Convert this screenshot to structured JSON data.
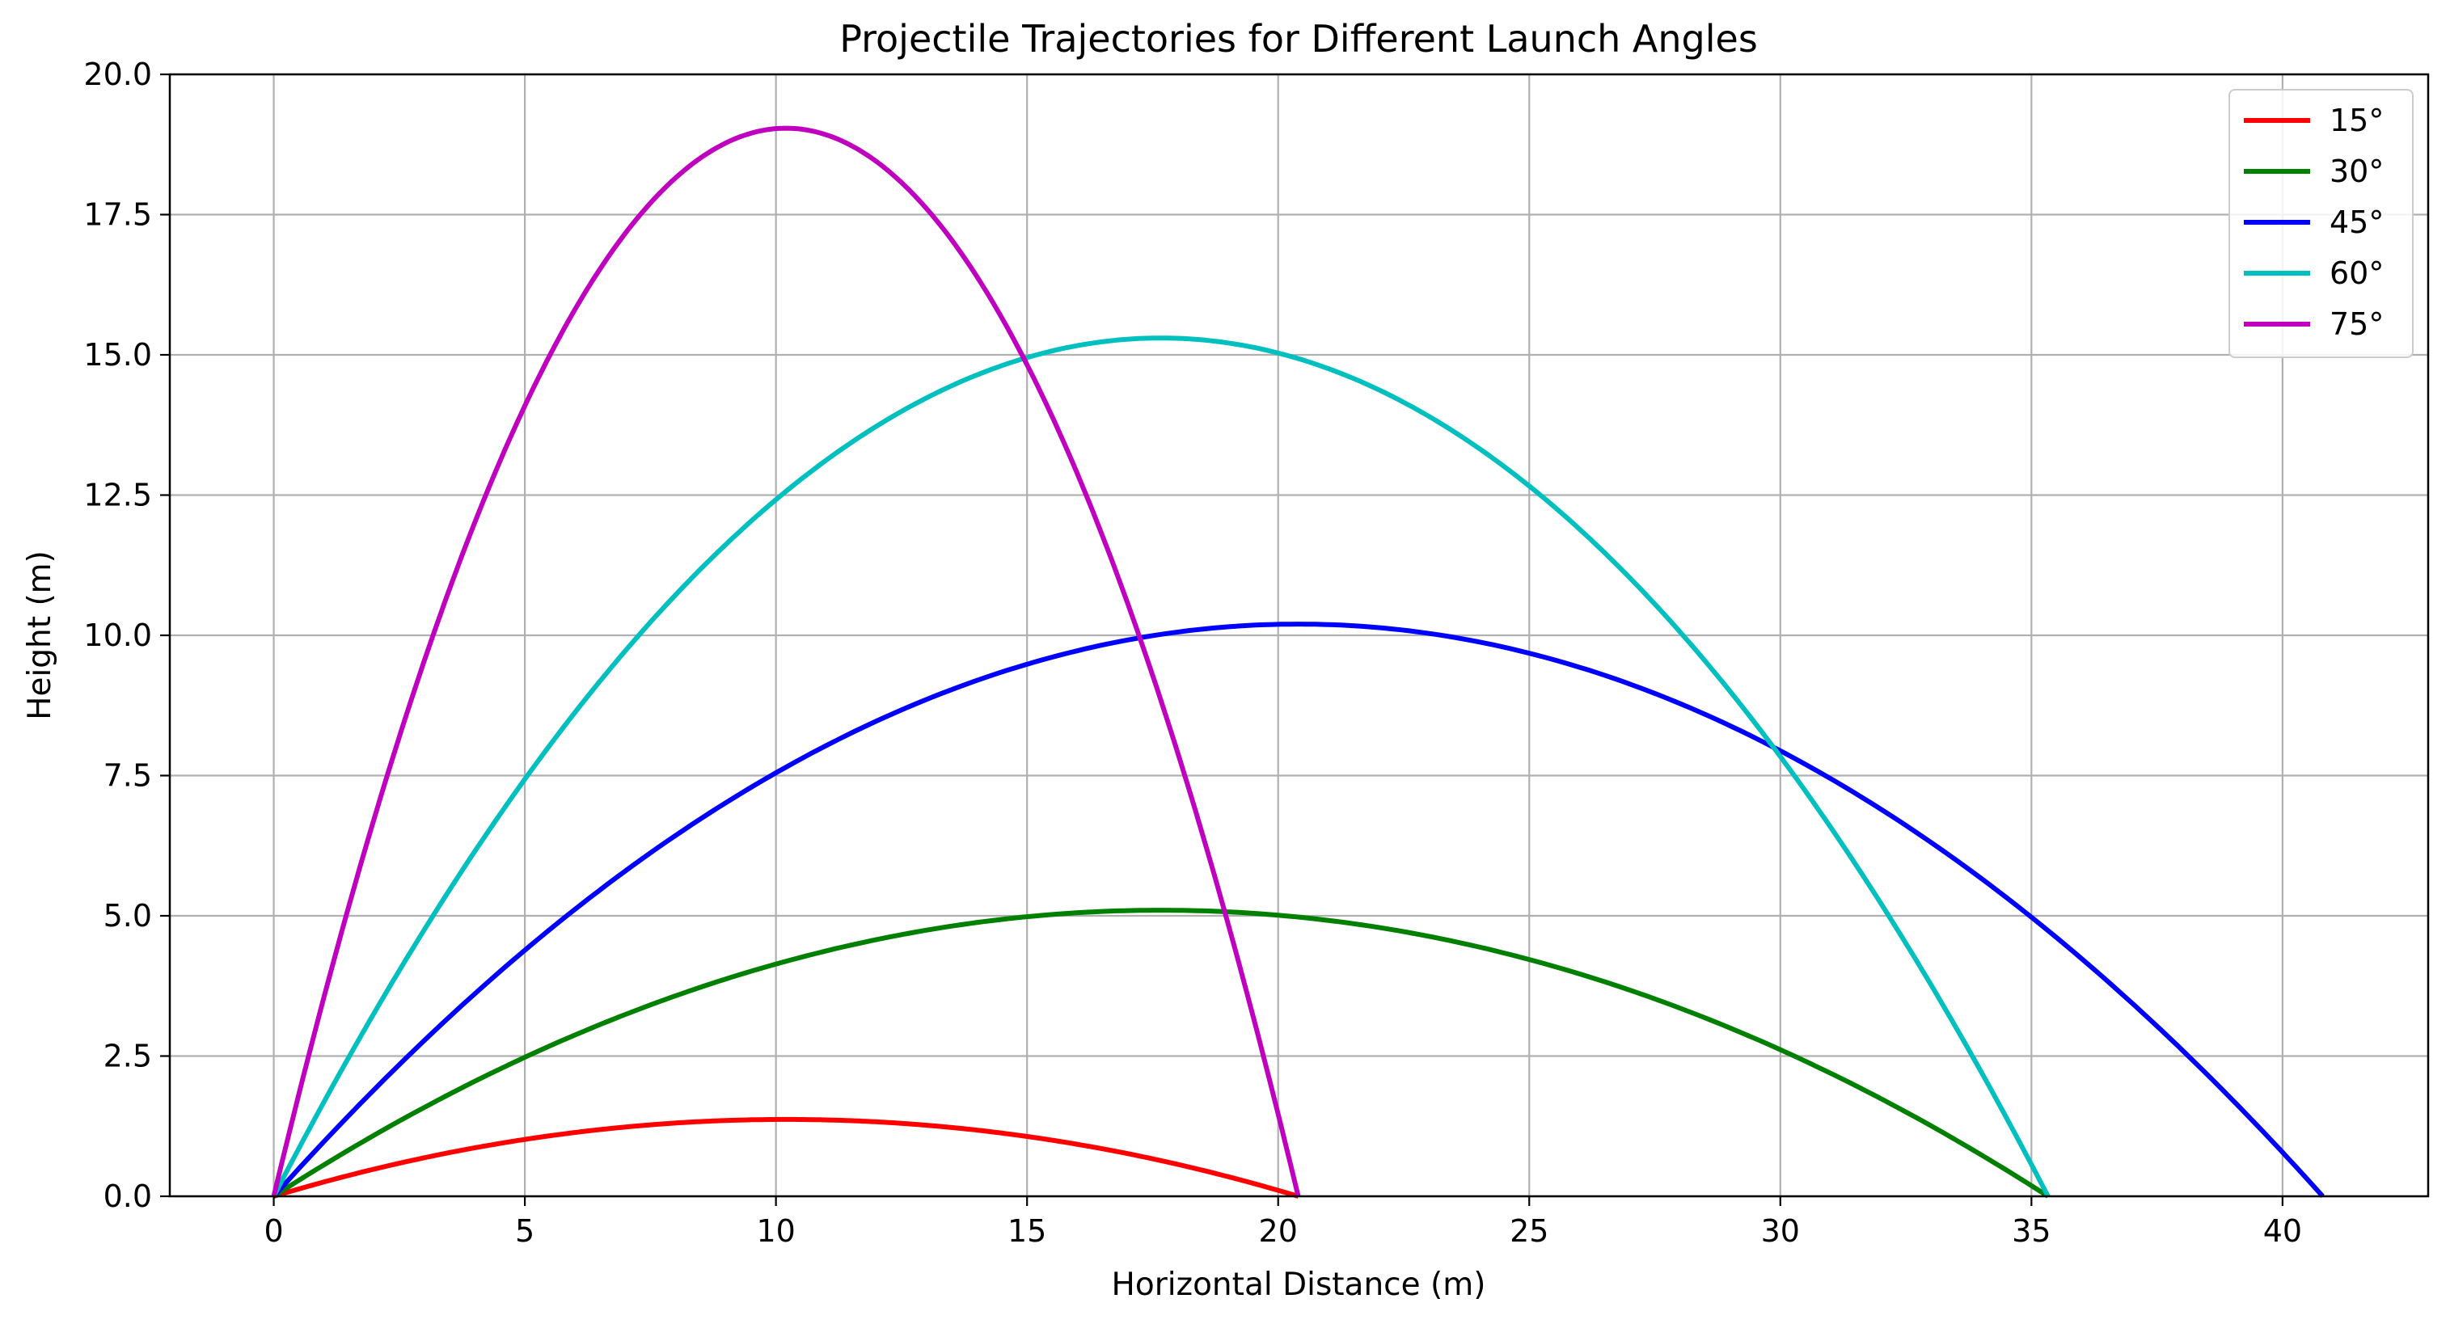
{
  "chart_data": {
    "type": "line",
    "title": "Projectile Trajectories for Different Launch Angles",
    "xlabel": "Horizontal Distance (m)",
    "ylabel": "Height (m)",
    "xlim": [
      -2.07,
      42.9
    ],
    "ylim": [
      0,
      20
    ],
    "xticks": [
      0,
      5,
      10,
      15,
      20,
      25,
      30,
      35,
      40
    ],
    "yticks": [
      0,
      2.5,
      5,
      7.5,
      10,
      12.5,
      15,
      17.5,
      20
    ],
    "xtick_labels": [
      "0",
      "5",
      "10",
      "15",
      "20",
      "25",
      "30",
      "35",
      "40"
    ],
    "ytick_labels": [
      "0.0",
      "2.5",
      "5.0",
      "7.5",
      "10.0",
      "12.5",
      "15.0",
      "17.5",
      "20.0"
    ],
    "grid": true,
    "legend_position": "top-right",
    "series": [
      {
        "name": "15°",
        "color": "#ff0000",
        "x": [
          0,
          2.55,
          5.1,
          7.65,
          10.2,
          12.75,
          15.3,
          17.85,
          20.4
        ],
        "y": [
          0,
          0.6,
          1.02,
          1.28,
          1.37,
          1.28,
          1.02,
          0.6,
          0
        ]
      },
      {
        "name": "30°",
        "color": "#008000",
        "x": [
          0,
          4.42,
          8.83,
          13.25,
          17.67,
          22.08,
          26.5,
          30.92,
          35.33
        ],
        "y": [
          0,
          2.23,
          3.82,
          4.78,
          5.1,
          4.78,
          3.82,
          2.23,
          0
        ]
      },
      {
        "name": "45°",
        "color": "#0000ff",
        "x": [
          0,
          5.1,
          10.2,
          15.3,
          20.4,
          25.5,
          30.6,
          35.7,
          40.8
        ],
        "y": [
          0,
          4.46,
          7.65,
          9.56,
          10.2,
          9.56,
          7.65,
          4.46,
          0
        ]
      },
      {
        "name": "60°",
        "color": "#00bfbf",
        "x": [
          0,
          4.42,
          8.83,
          13.25,
          17.67,
          22.08,
          26.5,
          30.92,
          35.33
        ],
        "y": [
          0,
          6.69,
          11.47,
          14.34,
          15.3,
          14.34,
          11.47,
          6.69,
          0
        ]
      },
      {
        "name": "75°",
        "color": "#bf00bf",
        "x": [
          0,
          2.55,
          5.1,
          7.65,
          10.2,
          12.75,
          15.3,
          17.85,
          20.4
        ],
        "y": [
          0,
          8.33,
          14.28,
          17.85,
          19.04,
          17.85,
          14.28,
          8.33,
          0
        ]
      }
    ]
  }
}
